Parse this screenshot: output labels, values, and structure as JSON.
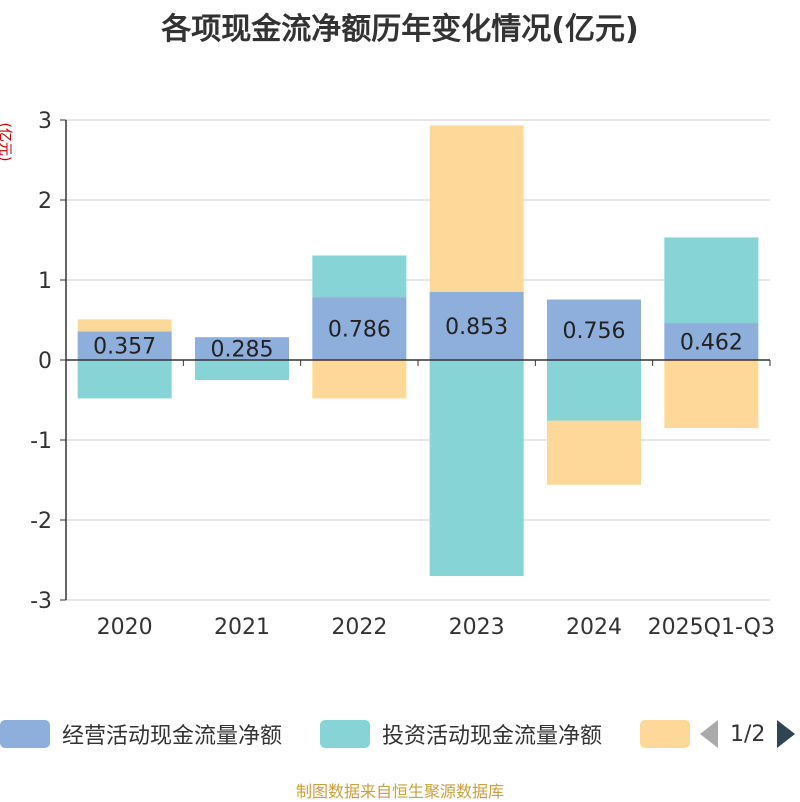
{
  "chart_data": {
    "type": "bar",
    "stacked": true,
    "title": "各项现金流净额历年变化情况(亿元)",
    "ylabel": "(亿元)",
    "ylim": [
      -3,
      3
    ],
    "yticks": [
      3,
      2,
      1,
      0,
      -1,
      -2,
      -3
    ],
    "categories": [
      "2020",
      "2021",
      "2022",
      "2023",
      "2024",
      "2025Q1-Q3"
    ],
    "series": [
      {
        "name": "经营活动现金流量净额",
        "color": "#8eaedc",
        "values": [
          0.357,
          0.285,
          0.786,
          0.853,
          0.756,
          0.462
        ]
      },
      {
        "name": "投资活动现金流量净额",
        "color": "#86d4d6",
        "values": [
          -0.48,
          -0.25,
          0.52,
          -2.7,
          -0.76,
          1.07
        ]
      },
      {
        "name": "",
        "color": "#fed898",
        "values": [
          0.15,
          0.0,
          -0.48,
          2.08,
          -0.8,
          -0.85
        ]
      }
    ],
    "data_labels": [
      "0.357",
      "0.285",
      "0.786",
      "0.853",
      "0.756",
      "0.462"
    ]
  },
  "legend": {
    "items": [
      "经营活动现金流量净额",
      "投资活动现金流量净额",
      ""
    ],
    "page": "1/2"
  },
  "source": "制图数据来自恒生聚源数据库"
}
